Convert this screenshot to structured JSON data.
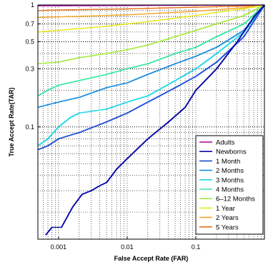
{
  "chart_data": {
    "type": "line",
    "title": "",
    "xlabel": "False Accept Rate (FAR)",
    "ylabel": "True Accept Rate(TAR)",
    "x_scale": "log",
    "y_scale": "log",
    "xlim": [
      0.0005,
      1
    ],
    "ylim": [
      0.012,
      1
    ],
    "grid": true,
    "legend_placement": "bottom-right",
    "x_ticks": [
      {
        "value": 0.001,
        "label": "0.001"
      },
      {
        "value": 0.01,
        "label": "0.01"
      },
      {
        "value": 0.1,
        "label": "0.1"
      }
    ],
    "y_ticks": [
      {
        "value": 1,
        "label": "1"
      },
      {
        "value": 0.7,
        "label": "0.7"
      },
      {
        "value": 0.5,
        "label": "0.5"
      },
      {
        "value": 0.3,
        "label": "0.3"
      },
      {
        "value": 0.1,
        "label": "0.1"
      }
    ],
    "series": [
      {
        "name": "Adults",
        "color": "#aa00aa",
        "points": [
          [
            0.0005,
            0.985
          ],
          [
            0.01,
            0.99
          ],
          [
            0.1,
            0.995
          ],
          [
            1,
            1
          ]
        ]
      },
      {
        "name": "Newborns",
        "color": "#0a0aa6",
        "points": [
          [
            0.00065,
            0.013
          ],
          [
            0.0008,
            0.015
          ],
          [
            0.0011,
            0.015
          ],
          [
            0.0016,
            0.022
          ],
          [
            0.0022,
            0.028
          ],
          [
            0.003,
            0.03
          ],
          [
            0.004,
            0.033
          ],
          [
            0.005,
            0.035
          ],
          [
            0.007,
            0.045
          ],
          [
            0.01,
            0.055
          ],
          [
            0.02,
            0.08
          ],
          [
            0.04,
            0.11
          ],
          [
            0.07,
            0.145
          ],
          [
            0.1,
            0.2
          ],
          [
            0.2,
            0.3
          ],
          [
            0.4,
            0.5
          ],
          [
            0.7,
            0.8
          ],
          [
            1,
            1
          ]
        ]
      },
      {
        "name": "1 Month",
        "color": "#1f4fd6",
        "points": [
          [
            0.0005,
            0.065
          ],
          [
            0.0007,
            0.07
          ],
          [
            0.001,
            0.08
          ],
          [
            0.002,
            0.09
          ],
          [
            0.005,
            0.11
          ],
          [
            0.01,
            0.13
          ],
          [
            0.02,
            0.16
          ],
          [
            0.05,
            0.21
          ],
          [
            0.1,
            0.26
          ],
          [
            0.2,
            0.34
          ],
          [
            0.5,
            0.55
          ],
          [
            1,
            1
          ]
        ]
      },
      {
        "name": "2 Months",
        "color": "#1a8ee0",
        "points": [
          [
            0.0005,
            0.145
          ],
          [
            0.001,
            0.16
          ],
          [
            0.002,
            0.175
          ],
          [
            0.005,
            0.21
          ],
          [
            0.01,
            0.23
          ],
          [
            0.02,
            0.27
          ],
          [
            0.05,
            0.33
          ],
          [
            0.1,
            0.38
          ],
          [
            0.2,
            0.45
          ],
          [
            0.5,
            0.62
          ],
          [
            1,
            1
          ]
        ]
      },
      {
        "name": "3 Months",
        "color": "#22d8e8",
        "points": [
          [
            0.0005,
            0.07
          ],
          [
            0.0007,
            0.08
          ],
          [
            0.001,
            0.1
          ],
          [
            0.0015,
            0.12
          ],
          [
            0.002,
            0.13
          ],
          [
            0.005,
            0.14
          ],
          [
            0.01,
            0.16
          ],
          [
            0.02,
            0.18
          ],
          [
            0.05,
            0.24
          ],
          [
            0.1,
            0.3
          ],
          [
            0.2,
            0.4
          ],
          [
            0.5,
            0.6
          ],
          [
            1,
            1
          ]
        ]
      },
      {
        "name": "4 Months",
        "color": "#35e8a0",
        "points": [
          [
            0.0005,
            0.18
          ],
          [
            0.0007,
            0.2
          ],
          [
            0.001,
            0.22
          ],
          [
            0.002,
            0.24
          ],
          [
            0.005,
            0.27
          ],
          [
            0.01,
            0.3
          ],
          [
            0.02,
            0.33
          ],
          [
            0.05,
            0.4
          ],
          [
            0.1,
            0.45
          ],
          [
            0.2,
            0.55
          ],
          [
            0.5,
            0.7
          ],
          [
            1,
            1
          ]
        ]
      },
      {
        "name": "6–12 Months",
        "color": "#a6ec3c",
        "points": [
          [
            0.0005,
            0.33
          ],
          [
            0.001,
            0.34
          ],
          [
            0.002,
            0.37
          ],
          [
            0.005,
            0.4
          ],
          [
            0.01,
            0.43
          ],
          [
            0.02,
            0.47
          ],
          [
            0.05,
            0.55
          ],
          [
            0.1,
            0.62
          ],
          [
            0.2,
            0.7
          ],
          [
            0.5,
            0.82
          ],
          [
            1,
            1
          ]
        ]
      },
      {
        "name": "1 Year",
        "color": "#e8ea1a",
        "points": [
          [
            0.0005,
            0.6
          ],
          [
            0.001,
            0.62
          ],
          [
            0.002,
            0.64
          ],
          [
            0.005,
            0.67
          ],
          [
            0.01,
            0.7
          ],
          [
            0.02,
            0.73
          ],
          [
            0.05,
            0.78
          ],
          [
            0.1,
            0.82
          ],
          [
            0.2,
            0.87
          ],
          [
            0.5,
            0.93
          ],
          [
            1,
            1
          ]
        ]
      },
      {
        "name": "2 Years",
        "color": "#f8a622",
        "points": [
          [
            0.0005,
            0.79
          ],
          [
            0.001,
            0.8
          ],
          [
            0.005,
            0.82
          ],
          [
            0.01,
            0.83
          ],
          [
            0.05,
            0.87
          ],
          [
            0.1,
            0.89
          ],
          [
            0.5,
            0.95
          ],
          [
            1,
            1
          ]
        ]
      },
      {
        "name": "5 Years",
        "color": "#e87018",
        "points": [
          [
            0.0005,
            0.9
          ],
          [
            0.001,
            0.91
          ],
          [
            0.01,
            0.93
          ],
          [
            0.1,
            0.96
          ],
          [
            0.5,
            0.98
          ],
          [
            1,
            1
          ]
        ]
      }
    ]
  }
}
